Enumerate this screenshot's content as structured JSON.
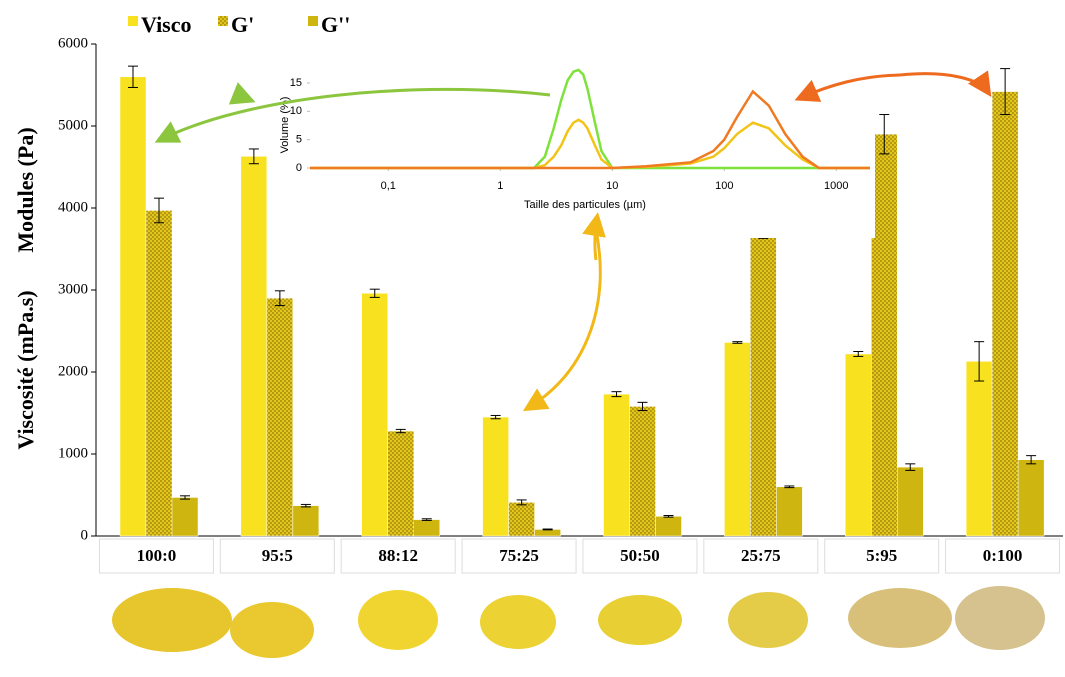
{
  "chart_data": [
    {
      "type": "bar",
      "ylabels": [
        "Modules (Pa)",
        "Viscosité (mPa.s)"
      ],
      "categories": [
        "100:0",
        "95:5",
        "88:12",
        "75:25",
        "50:50",
        "25:75",
        "5:95",
        "0:100"
      ],
      "series": [
        {
          "name": "Visco",
          "color": "#f8e11f",
          "values": [
            5600,
            4630,
            2960,
            1450,
            1730,
            2360,
            2220,
            2130
          ],
          "errors": [
            130,
            90,
            50,
            20,
            30,
            10,
            30,
            240
          ]
        },
        {
          "name": "G'",
          "color": "#e3c51c",
          "values": [
            3970,
            2900,
            1280,
            410,
            1580,
            3680,
            4900,
            5420
          ],
          "errors": [
            150,
            90,
            20,
            30,
            50,
            50,
            240,
            280
          ]
        },
        {
          "name": "G''",
          "color": "#cfb50f",
          "values": [
            470,
            370,
            200,
            80,
            240,
            600,
            840,
            930
          ],
          "errors": [
            20,
            15,
            10,
            5,
            10,
            10,
            40,
            50
          ]
        }
      ],
      "ylim": [
        0,
        6000
      ],
      "yticks": [
        0,
        1000,
        2000,
        3000,
        4000,
        5000,
        6000
      ],
      "legend": "top-left"
    },
    {
      "type": "line",
      "xlabel": "Taille des particules (µm)",
      "ylabel": "Volume (%)",
      "xscale": "log",
      "x": [
        0.02,
        2,
        2.5,
        3,
        3.5,
        4,
        4.5,
        5,
        5.5,
        6,
        7,
        8,
        10,
        20,
        50,
        80,
        100,
        130,
        180,
        250,
        350,
        500,
        700,
        2000
      ],
      "series": [
        {
          "color": "#7ee23a",
          "values": [
            0,
            0,
            2,
            7,
            12,
            15.5,
            17,
            17.3,
            16.5,
            14,
            8,
            3,
            0,
            0,
            0,
            0,
            0,
            0,
            0,
            0,
            0,
            0,
            0,
            0
          ]
        },
        {
          "color": "#f2c418",
          "values": [
            0,
            0,
            0.5,
            2,
            4,
            6.5,
            8,
            8.5,
            8,
            7,
            4,
            1.5,
            0,
            0.2,
            0.8,
            2,
            3.5,
            6,
            8,
            7,
            4,
            1.5,
            0,
            0
          ]
        },
        {
          "color": "#ef7a22",
          "values": [
            0,
            0,
            0,
            0,
            0,
            0,
            0,
            0,
            0,
            0,
            0,
            0,
            0,
            0.3,
            1,
            3,
            5,
            9,
            13.5,
            11,
            6,
            2,
            0,
            0
          ]
        }
      ],
      "xlim": [
        0.02,
        2000
      ],
      "xticks": [
        {
          "value": 0.1,
          "label": "0,1"
        },
        1,
        10,
        100,
        1000
      ],
      "ylim": [
        0,
        18
      ],
      "yticks": [
        0,
        5,
        10,
        15
      ]
    }
  ]
}
